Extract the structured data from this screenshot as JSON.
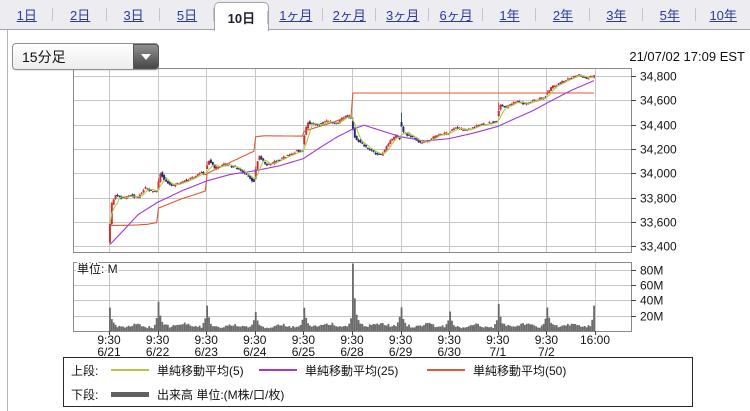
{
  "tabs": {
    "items": [
      "1日",
      "2日",
      "3日",
      "5日",
      "10日",
      "1ヶ月",
      "2ヶ月",
      "3ヶ月",
      "6ヶ月",
      "1年",
      "2年",
      "3年",
      "5年",
      "10年"
    ],
    "selected": "10日"
  },
  "toolbar": {
    "interval_value": "15分足",
    "timestamp": "21/07/02 17:09 EST"
  },
  "legend": {
    "upper_label": "上段:",
    "lower_label": "下段:",
    "volume_label": "出来高 単位:(M株/口/枚)",
    "volume_swatch_color": "#606060"
  },
  "chart_data": {
    "type": "candlestick+volume",
    "interval": "15分足",
    "bars_per_day": 26,
    "price_axis": {
      "ticks": [
        34800,
        34600,
        34400,
        34200,
        34000,
        33800,
        33600,
        33400
      ],
      "top_edge": 34866,
      "bottom_edge": 33352,
      "grid": true
    },
    "volume_axis": {
      "ticks_m": [
        80,
        60,
        40,
        20
      ],
      "max_m": 90,
      "unit_label": "単位: M"
    },
    "x_axis": {
      "open_time_label": "9:30",
      "end_label": "16:00"
    },
    "colors": {
      "up": "#c93030",
      "down": "#232d72",
      "volume": "#6a6a6a",
      "grid": "#c6c6c6",
      "border": "#8a8a8a",
      "tick": "#444444"
    },
    "ma": {
      "ma5": {
        "label": "単純移動平均(5)",
        "color": "#afc940",
        "window": 5
      },
      "ma25": {
        "label": "単純移動平均(25)",
        "color": "#a238d8",
        "points": [
          [
            0,
            33405
          ],
          [
            0.3,
            33530
          ],
          [
            0.6,
            33660
          ],
          [
            1,
            33760
          ],
          [
            1.5,
            33855
          ],
          [
            2,
            33935
          ],
          [
            2.5,
            33990
          ],
          [
            3,
            34020
          ],
          [
            3.5,
            34060
          ],
          [
            4,
            34120
          ],
          [
            4.3,
            34200
          ],
          [
            4.7,
            34300
          ],
          [
            5,
            34360
          ],
          [
            5.25,
            34395
          ],
          [
            5.6,
            34350
          ],
          [
            6,
            34300
          ],
          [
            6.5,
            34265
          ],
          [
            7,
            34285
          ],
          [
            7.5,
            34330
          ],
          [
            8,
            34385
          ],
          [
            8.3,
            34440
          ],
          [
            8.7,
            34510
          ],
          [
            9,
            34575
          ],
          [
            9.5,
            34680
          ],
          [
            10,
            34765
          ]
        ]
      },
      "ma50": {
        "label": "単純移動平均(50)",
        "color": "#e05a35",
        "points": [
          [
            0,
            33570
          ],
          [
            0.5,
            33572
          ],
          [
            0.8,
            33580
          ],
          [
            1,
            33595
          ],
          [
            1.5,
            33655
          ],
          [
            2,
            33710
          ],
          [
            2.5,
            33790
          ],
          [
            3,
            33855
          ],
          [
            3.5,
            33925
          ],
          [
            4,
            33995
          ],
          [
            4.5,
            34090
          ],
          [
            5,
            34185
          ],
          [
            5.4,
            34250
          ],
          [
            5.8,
            34290
          ],
          [
            6.2,
            34308
          ],
          [
            7,
            34305
          ],
          [
            7.5,
            34318
          ],
          [
            8,
            34345
          ],
          [
            8.5,
            34405
          ],
          [
            9,
            34475
          ],
          [
            9.5,
            34565
          ],
          [
            10,
            34660
          ]
        ]
      }
    },
    "days": [
      {
        "date": "6/21",
        "time": "9:30",
        "wick0": 8,
        "path": [
          [
            0,
            33430
          ],
          [
            0.08,
            33760
          ],
          [
            0.16,
            33825
          ],
          [
            0.3,
            33790
          ],
          [
            0.45,
            33825
          ],
          [
            0.6,
            33795
          ],
          [
            0.75,
            33880
          ],
          [
            0.88,
            33855
          ],
          [
            1,
            33840
          ]
        ],
        "vol": {
          "spike": 26,
          "base": 5,
          "close": 11
        }
      },
      {
        "date": "6/22",
        "time": "9:30",
        "wick0": 15,
        "path": [
          [
            0,
            33865
          ],
          [
            0.08,
            34005
          ],
          [
            0.18,
            33930
          ],
          [
            0.35,
            33895
          ],
          [
            0.55,
            33935
          ],
          [
            0.75,
            33965
          ],
          [
            0.92,
            34010
          ],
          [
            1,
            33990
          ]
        ],
        "vol": {
          "spike": 33,
          "base": 6,
          "close": 11
        }
      },
      {
        "date": "6/23",
        "time": "9:30",
        "wick0": 30,
        "path": [
          [
            0,
            34035
          ],
          [
            0.08,
            34110
          ],
          [
            0.2,
            34040
          ],
          [
            0.4,
            34075
          ],
          [
            0.6,
            34050
          ],
          [
            0.8,
            34005
          ],
          [
            0.95,
            33945
          ],
          [
            1,
            33930
          ]
        ],
        "vol": {
          "spike": 29,
          "base": 5,
          "close": 9
        }
      },
      {
        "date": "6/24",
        "time": "9:30",
        "wick0": 15,
        "path": [
          [
            0,
            33955
          ],
          [
            0.1,
            34150
          ],
          [
            0.25,
            34065
          ],
          [
            0.45,
            34095
          ],
          [
            0.7,
            34150
          ],
          [
            0.9,
            34185
          ],
          [
            1,
            34175
          ]
        ],
        "vol": {
          "spike": 19,
          "base": 5,
          "close": 9
        }
      },
      {
        "date": "6/25",
        "time": "9:30",
        "wick0": 10,
        "path": [
          [
            0,
            34240
          ],
          [
            0.1,
            34420
          ],
          [
            0.3,
            34395
          ],
          [
            0.5,
            34435
          ],
          [
            0.7,
            34405
          ],
          [
            0.88,
            34480
          ],
          [
            1,
            34450
          ]
        ],
        "vol": {
          "spike": 26,
          "base": 6,
          "close": 11
        }
      },
      {
        "date": "6/28",
        "time": "9:30",
        "wick0": 20,
        "path": [
          [
            0,
            34430
          ],
          [
            0.08,
            34295
          ],
          [
            0.25,
            34230
          ],
          [
            0.45,
            34175
          ],
          [
            0.62,
            34150
          ],
          [
            0.8,
            34265
          ],
          [
            0.92,
            34310
          ],
          [
            1,
            34285
          ]
        ],
        "vol": {
          "spike": 80,
          "base": 7,
          "close": 11
        }
      },
      {
        "date": "6/29",
        "time": "9:30",
        "wick0": 70,
        "path": [
          [
            0,
            34420
          ],
          [
            0.08,
            34330
          ],
          [
            0.25,
            34300
          ],
          [
            0.45,
            34245
          ],
          [
            0.62,
            34275
          ],
          [
            0.8,
            34320
          ],
          [
            1,
            34330
          ]
        ],
        "vol": {
          "spike": 25,
          "base": 6,
          "close": 9
        }
      },
      {
        "date": "6/30",
        "time": "9:30",
        "wick0": 10,
        "path": [
          [
            0,
            34330
          ],
          [
            0.15,
            34375
          ],
          [
            0.35,
            34350
          ],
          [
            0.55,
            34385
          ],
          [
            0.75,
            34405
          ],
          [
            1,
            34425
          ]
        ],
        "vol": {
          "spike": 19,
          "base": 5,
          "close": 9
        }
      },
      {
        "date": "7/1",
        "time": "9:30",
        "wick0": 60,
        "path": [
          [
            0,
            34470
          ],
          [
            0.08,
            34565
          ],
          [
            0.2,
            34545
          ],
          [
            0.4,
            34590
          ],
          [
            0.6,
            34570
          ],
          [
            0.8,
            34605
          ],
          [
            1,
            34625
          ]
        ],
        "vol": {
          "spike": 28,
          "base": 6,
          "close": 11
        }
      },
      {
        "date": "7/2",
        "time": "9:30",
        "wick0": 15,
        "path": [
          [
            0,
            34650
          ],
          [
            0.12,
            34705
          ],
          [
            0.3,
            34745
          ],
          [
            0.5,
            34785
          ],
          [
            0.68,
            34810
          ],
          [
            0.82,
            34780
          ],
          [
            1,
            34800
          ]
        ],
        "vol": {
          "spike": 24,
          "base": 6,
          "close": 26
        }
      }
    ]
  }
}
